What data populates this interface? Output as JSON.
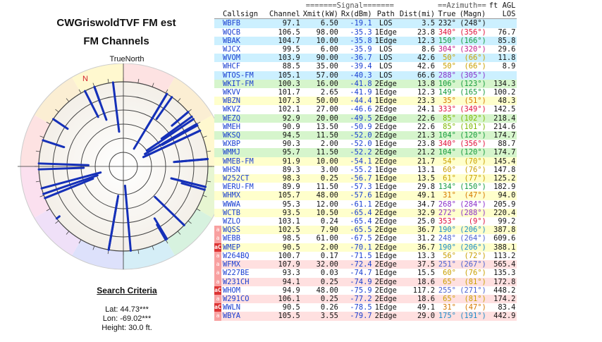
{
  "title_line1": "CWGriswoldTVF FM est",
  "title_line2": "FM Channels",
  "polar": {
    "top_label": "TrueNorth",
    "north_label": "N",
    "colors": {
      "line": "#1530b8",
      "ring": "#555"
    }
  },
  "search": {
    "title": "Search Criteria",
    "lat": "Lat: 44.73***",
    "lon": "Lon: -69.02***",
    "height": "Height: 30.0 ft."
  },
  "table": {
    "group_headers": {
      "signal": "=======Signal=======",
      "azimuth": "==Azimuth==",
      "agl": "ft AGL"
    },
    "columns": [
      "Callsign",
      "Channel",
      "Xmit(kW)",
      "Rx(dBm)",
      "Path",
      "Dist(mi)",
      "True",
      "(Magn)",
      "LOS"
    ],
    "rows": [
      {
        "flag": "",
        "cs": "WBFB",
        "ch": "97.1",
        "kw": "6.50",
        "rx": "-19.1",
        "path": "LOS",
        "dist": "3.5",
        "tr": "232°",
        "mg": "(248°)",
        "los": "",
        "bg": "#ccf0ff",
        "ac": "#111"
      },
      {
        "flag": "",
        "cs": "WQCB",
        "ch": "106.5",
        "kw": "98.00",
        "rx": "-35.3",
        "path": "1Edge",
        "dist": "23.8",
        "tr": "340°",
        "mg": "(356°)",
        "los": "76.7",
        "bg": "#ffffff",
        "ac": "#e0103a"
      },
      {
        "flag": "",
        "cs": "WBAK",
        "ch": "104.7",
        "kw": "10.00",
        "rx": "-35.8",
        "path": "1Edge",
        "dist": "12.3",
        "tr": "150°",
        "mg": "(166°)",
        "los": "85.8",
        "bg": "#ccf0ff",
        "ac": "#159b3c"
      },
      {
        "flag": "",
        "cs": "WJCX",
        "ch": "99.5",
        "kw": "6.00",
        "rx": "-35.9",
        "path": "LOS",
        "dist": "8.6",
        "tr": "304°",
        "mg": "(320°)",
        "los": "29.6",
        "bg": "#ffffff",
        "ac": "#c0198a"
      },
      {
        "flag": "",
        "cs": "WVOM",
        "ch": "103.9",
        "kw": "90.00",
        "rx": "-36.7",
        "path": "LOS",
        "dist": "42.6",
        "tr": "50°",
        "mg": "(66°)",
        "los": "11.8",
        "bg": "#ccf0ff",
        "ac": "#c9a000"
      },
      {
        "flag": "",
        "cs": "WHCF",
        "ch": "88.5",
        "kw": "35.00",
        "rx": "-39.4",
        "path": "LOS",
        "dist": "42.6",
        "tr": "50°",
        "mg": "(66°)",
        "los": "8.9",
        "bg": "#ffffff",
        "ac": "#c9a000"
      },
      {
        "flag": "",
        "cs": "WTOS-FM",
        "ch": "105.1",
        "kw": "57.00",
        "rx": "-40.3",
        "path": "LOS",
        "dist": "66.6",
        "tr": "288°",
        "mg": "(305°)",
        "los": "",
        "bg": "#ccf0ff",
        "ac": "#8a2fc9"
      },
      {
        "flag": "",
        "cs": "WKIT-FM",
        "ch": "100.3",
        "kw": "16.00",
        "rx": "-41.8",
        "path": "2Edge",
        "dist": "13.8",
        "tr": "106°",
        "mg": "(123°)",
        "los": "134.3",
        "bg": "#d6f5cc",
        "ac": "#159b3c"
      },
      {
        "flag": "",
        "cs": "WKVV",
        "ch": "101.7",
        "kw": "2.65",
        "rx": "-41.9",
        "path": "1Edge",
        "dist": "12.3",
        "tr": "149°",
        "mg": "(165°)",
        "los": "100.2",
        "bg": "#ffffff",
        "ac": "#159b3c"
      },
      {
        "flag": "",
        "cs": "WBZN",
        "ch": "107.3",
        "kw": "50.00",
        "rx": "-44.4",
        "path": "1Edge",
        "dist": "23.3",
        "tr": "35°",
        "mg": "(51°)",
        "los": "48.3",
        "bg": "#ffffcc",
        "ac": "#d67800"
      },
      {
        "flag": "",
        "cs": "WKVZ",
        "ch": "102.1",
        "kw": "27.00",
        "rx": "-46.6",
        "path": "2Edge",
        "dist": "24.1",
        "tr": "333°",
        "mg": "(349°)",
        "los": "142.5",
        "bg": "#ffffff",
        "ac": "#e0103a"
      },
      {
        "flag": "",
        "cs": "WEZQ",
        "ch": "92.9",
        "kw": "20.00",
        "rx": "-49.5",
        "path": "2Edge",
        "dist": "22.6",
        "tr": "85°",
        "mg": "(102°)",
        "los": "218.4",
        "bg": "#d6f5cc",
        "ac": "#7cb800"
      },
      {
        "flag": "",
        "cs": "WMEH",
        "ch": "90.9",
        "kw": "13.50",
        "rx": "-50.9",
        "path": "2Edge",
        "dist": "22.6",
        "tr": "85°",
        "mg": "(101°)",
        "los": "214.6",
        "bg": "#ffffff",
        "ac": "#7cb800"
      },
      {
        "flag": "",
        "cs": "WKSQ",
        "ch": "94.5",
        "kw": "11.50",
        "rx": "-52.0",
        "path": "2Edge",
        "dist": "21.3",
        "tr": "104°",
        "mg": "(120°)",
        "los": "174.7",
        "bg": "#d6f5cc",
        "ac": "#159b3c"
      },
      {
        "flag": "",
        "cs": "WXBP",
        "ch": "90.3",
        "kw": "2.00",
        "rx": "-52.0",
        "path": "1Edge",
        "dist": "23.8",
        "tr": "340°",
        "mg": "(356°)",
        "los": "88.7",
        "bg": "#ffffff",
        "ac": "#e0103a"
      },
      {
        "flag": "",
        "cs": "WMMJ",
        "ch": "95.7",
        "kw": "11.50",
        "rx": "-52.2",
        "path": "2Edge",
        "dist": "21.2",
        "tr": "104°",
        "mg": "(120°)",
        "los": "174.7",
        "bg": "#d6f5cc",
        "ac": "#159b3c"
      },
      {
        "flag": "",
        "cs": "WMEB-FM",
        "ch": "91.9",
        "kw": "10.00",
        "rx": "-54.1",
        "path": "2Edge",
        "dist": "21.7",
        "tr": "54°",
        "mg": "(70°)",
        "los": "145.4",
        "bg": "#ffffcc",
        "ac": "#c9a000"
      },
      {
        "flag": "",
        "cs": "WHSN",
        "ch": "89.3",
        "kw": "3.00",
        "rx": "-55.2",
        "path": "1Edge",
        "dist": "13.1",
        "tr": "60°",
        "mg": "(76°)",
        "los": "147.8",
        "bg": "#ffffff",
        "ac": "#c9a000"
      },
      {
        "flag": "",
        "cs": "W252CT",
        "ch": "98.3",
        "kw": "0.25",
        "rx": "-56.7",
        "path": "1Edge",
        "dist": "13.5",
        "tr": "61°",
        "mg": "(77°)",
        "los": "125.2",
        "bg": "#ffffcc",
        "ac": "#c9a000"
      },
      {
        "flag": "",
        "cs": "WERU-FM",
        "ch": "89.9",
        "kw": "11.50",
        "rx": "-57.3",
        "path": "1Edge",
        "dist": "29.8",
        "tr": "134°",
        "mg": "(150°)",
        "los": "182.9",
        "bg": "#ffffff",
        "ac": "#159b3c"
      },
      {
        "flag": "",
        "cs": "WHMX",
        "ch": "105.7",
        "kw": "48.00",
        "rx": "-57.6",
        "path": "1Edge",
        "dist": "49.1",
        "tr": "31°",
        "mg": "(47°)",
        "los": "94.0",
        "bg": "#ffffcc",
        "ac": "#d67800"
      },
      {
        "flag": "",
        "cs": "WWWA",
        "ch": "95.3",
        "kw": "12.00",
        "rx": "-61.1",
        "path": "2Edge",
        "dist": "34.7",
        "tr": "268°",
        "mg": "(284°)",
        "los": "205.9",
        "bg": "#ffffff",
        "ac": "#8a2fc9"
      },
      {
        "flag": "",
        "cs": "WCTB",
        "ch": "93.5",
        "kw": "10.50",
        "rx": "-65.4",
        "path": "2Edge",
        "dist": "32.9",
        "tr": "272°",
        "mg": "(288°)",
        "los": "220.4",
        "bg": "#ffffcc",
        "ac": "#8a2fc9"
      },
      {
        "flag": "",
        "cs": "WZLO",
        "ch": "103.1",
        "kw": "0.24",
        "rx": "-65.4",
        "path": "2Edge",
        "dist": "25.0",
        "tr": "353°",
        "mg": "(9°)",
        "los": "99.2",
        "bg": "#ffffff",
        "ac": "#e0103a"
      },
      {
        "flag": "a",
        "cs": "WQSS",
        "ch": "102.5",
        "kw": "7.90",
        "rx": "-65.5",
        "path": "2Edge",
        "dist": "36.7",
        "tr": "190°",
        "mg": "(206°)",
        "los": "387.8",
        "bg": "#ffffcc",
        "ac": "#1a8bc9"
      },
      {
        "flag": "a",
        "cs": "WEBB",
        "ch": "98.5",
        "kw": "61.00",
        "rx": "-67.5",
        "path": "2Edge",
        "dist": "31.2",
        "tr": "248°",
        "mg": "(264°)",
        "los": "609.6",
        "bg": "#ffffff",
        "ac": "#4a5fd1"
      },
      {
        "flag": "aC",
        "cs": "WMEP",
        "ch": "90.5",
        "kw": "2.00",
        "rx": "-70.1",
        "path": "2Edge",
        "dist": "36.7",
        "tr": "190°",
        "mg": "(206°)",
        "los": "388.1",
        "bg": "#ffffcc",
        "ac": "#1a8bc9"
      },
      {
        "flag": "a",
        "cs": "W264BQ",
        "ch": "100.7",
        "kw": "0.17",
        "rx": "-71.5",
        "path": "1Edge",
        "dist": "13.3",
        "tr": "56°",
        "mg": "(72°)",
        "los": "113.2",
        "bg": "#ffffff",
        "ac": "#c9a000"
      },
      {
        "flag": "a",
        "cs": "WFMX",
        "ch": "107.9",
        "kw": "32.00",
        "rx": "-72.4",
        "path": "2Edge",
        "dist": "37.5",
        "tr": "251°",
        "mg": "(267°)",
        "los": "565.4",
        "bg": "#ffe0e0",
        "ac": "#4a5fd1"
      },
      {
        "flag": "a",
        "cs": "W227BE",
        "ch": "93.3",
        "kw": "0.03",
        "rx": "-74.7",
        "path": "1Edge",
        "dist": "15.5",
        "tr": "60°",
        "mg": "(76°)",
        "los": "135.3",
        "bg": "#ffffff",
        "ac": "#c9a000"
      },
      {
        "flag": "a",
        "cs": "W231CH",
        "ch": "94.1",
        "kw": "0.25",
        "rx": "-74.9",
        "path": "2Edge",
        "dist": "18.6",
        "tr": "65°",
        "mg": "(81°)",
        "los": "172.8",
        "bg": "#ffe0e0",
        "ac": "#c9a000"
      },
      {
        "flag": "aC",
        "cs": "WHOM",
        "ch": "94.9",
        "kw": "48.00",
        "rx": "-75.9",
        "path": "2Edge",
        "dist": "117.2",
        "tr": "255°",
        "mg": "(271°)",
        "los": "448.2",
        "bg": "#ffffff",
        "ac": "#4a5fd1"
      },
      {
        "flag": "a",
        "cs": "W291CO",
        "ch": "106.1",
        "kw": "0.25",
        "rx": "-77.2",
        "path": "2Edge",
        "dist": "18.6",
        "tr": "65°",
        "mg": "(81°)",
        "los": "174.2",
        "bg": "#ffe0e0",
        "ac": "#c9a000"
      },
      {
        "flag": "aC",
        "cs": "WWLN",
        "ch": "90.5",
        "kw": "0.26",
        "rx": "-78.5",
        "path": "1Edge",
        "dist": "49.1",
        "tr": "31°",
        "mg": "(47°)",
        "los": "83.4",
        "bg": "#ffffff",
        "ac": "#d67800"
      },
      {
        "flag": "a",
        "cs": "WBYA",
        "ch": "105.5",
        "kw": "3.55",
        "rx": "-79.7",
        "path": "2Edge",
        "dist": "29.0",
        "tr": "175°",
        "mg": "(191°)",
        "los": "442.9",
        "bg": "#ffe0e0",
        "ac": "#1a8bc9"
      }
    ]
  }
}
